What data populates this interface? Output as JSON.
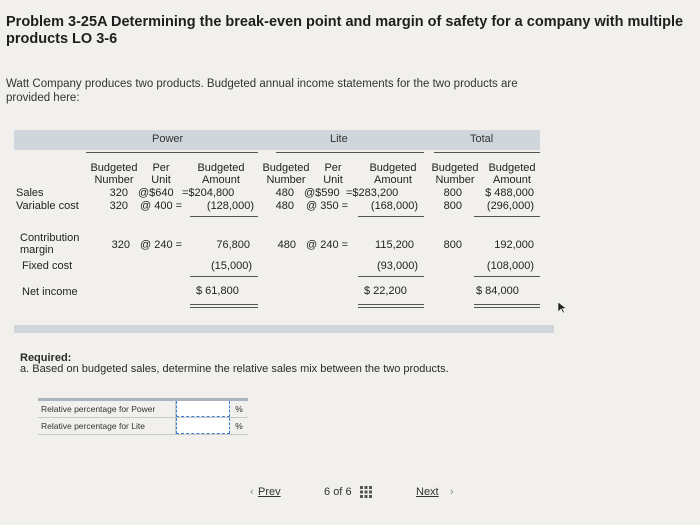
{
  "problem": {
    "title": "Problem 3-25A Determining the break-even point and margin of safety for a company with multiple products LO 3-6",
    "intro": "Watt Company produces two products. Budgeted annual income statements for the two products are provided here:"
  },
  "table": {
    "groups": [
      "Power",
      "Lite",
      "Total"
    ],
    "subheaders": {
      "budgeted": "Budgeted",
      "per": "Per",
      "number": "Number",
      "unit": "Unit",
      "amount": "Amount"
    },
    "rows": {
      "sales": {
        "label": "Sales",
        "p_num": "320",
        "p_price": "@$640",
        "p_amt": "=$204,800",
        "l_num": "480",
        "l_price": "@$590",
        "l_amt": "=$283,200",
        "t_num": "800",
        "t_amt": "$ 488,000"
      },
      "variable": {
        "label": "Variable cost",
        "p_num": "320",
        "p_price": "@ 400 =",
        "p_amt": "(128,000)",
        "l_num": "480",
        "l_price": "@ 350 =",
        "l_amt": "(168,000)",
        "t_num": "800",
        "t_amt": "(296,000)"
      },
      "contribution": {
        "label1": "Contribution",
        "label2": "margin",
        "p_num": "320",
        "p_price": "@ 240 =",
        "p_amt": "76,800",
        "l_num": "480",
        "l_price": "@ 240 =",
        "l_amt": "115,200",
        "t_num": "800",
        "t_amt": "192,000"
      },
      "fixed": {
        "label": "Fixed cost",
        "p_amt": "(15,000)",
        "l_amt": "(93,000)",
        "t_amt": "(108,000)"
      },
      "net": {
        "label": "Net income",
        "p_amt": "$ 61,800",
        "l_amt": "$ 22,200",
        "t_amt": "$ 84,000"
      }
    }
  },
  "required": {
    "heading": "Required:",
    "part_a": "a. Based on budgeted sales, determine the relative sales mix between the two products."
  },
  "answer": {
    "rows": [
      {
        "label": "Relative percentage for Power",
        "value": "",
        "unit": "%"
      },
      {
        "label": "Relative percentage for Lite",
        "value": "",
        "unit": "%"
      }
    ]
  },
  "pager": {
    "prev": "Prev",
    "current": "6",
    "of": "of",
    "total": "6",
    "next": "Next"
  },
  "colors": {
    "header_band": "#cfd6dc",
    "input_border": "#3a7fd0"
  }
}
